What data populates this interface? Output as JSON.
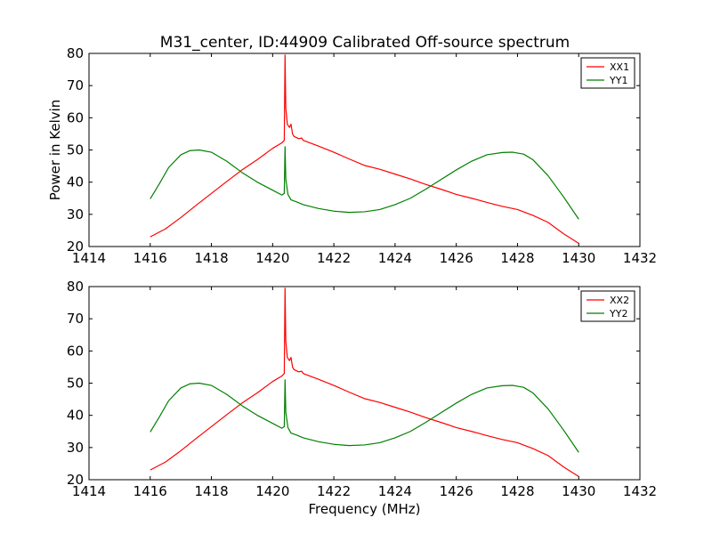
{
  "title": "M31_center, ID:44909 Calibrated Off-source spectrum",
  "chart_data": [
    {
      "type": "line",
      "ylabel": "Power in Kelvin",
      "xlabel": "",
      "xlim": [
        1414,
        1432
      ],
      "ylim": [
        20,
        80
      ],
      "xticks": [
        "1414",
        "1416",
        "1418",
        "1420",
        "1422",
        "1424",
        "1426",
        "1428",
        "1430",
        "1432"
      ],
      "yticks": [
        "20",
        "30",
        "40",
        "50",
        "60",
        "70",
        "80"
      ],
      "legend_placement": "top-right",
      "grid": false,
      "series": [
        {
          "name": "XX1",
          "color": "#ff0000",
          "x": [
            1416.0,
            1416.5,
            1417.0,
            1417.5,
            1418.0,
            1418.5,
            1419.0,
            1419.5,
            1420.0,
            1420.3,
            1420.38,
            1420.405,
            1420.43,
            1420.48,
            1420.55,
            1420.6,
            1420.65,
            1420.7,
            1420.85,
            1420.95,
            1421.0,
            1421.5,
            1422.0,
            1422.5,
            1423.0,
            1423.5,
            1424.0,
            1424.5,
            1425.0,
            1425.5,
            1426.0,
            1426.5,
            1426.7,
            1427.0,
            1427.5,
            1428.0,
            1428.5,
            1429.0,
            1429.5,
            1430.0
          ],
          "y": [
            23.0,
            25.5,
            29.0,
            32.8,
            36.5,
            40.2,
            43.8,
            47.0,
            50.5,
            52.2,
            53.0,
            79.5,
            63.0,
            58.0,
            57.0,
            58.0,
            55.0,
            54.2,
            53.5,
            53.7,
            53.0,
            51.2,
            49.3,
            47.2,
            45.2,
            44.0,
            42.5,
            41.0,
            39.3,
            37.8,
            36.2,
            35.0,
            34.5,
            33.7,
            32.5,
            31.5,
            29.7,
            27.5,
            24.0,
            21.0
          ]
        },
        {
          "name": "YY1",
          "color": "#008000",
          "x": [
            1416.0,
            1416.3,
            1416.6,
            1417.0,
            1417.3,
            1417.6,
            1418.0,
            1418.5,
            1419.0,
            1419.5,
            1420.0,
            1420.3,
            1420.38,
            1420.405,
            1420.43,
            1420.5,
            1420.6,
            1420.8,
            1421.0,
            1421.5,
            1422.0,
            1422.5,
            1423.0,
            1423.5,
            1424.0,
            1424.5,
            1425.0,
            1425.5,
            1426.0,
            1426.5,
            1427.0,
            1427.5,
            1427.85,
            1428.2,
            1428.5,
            1429.0,
            1429.5,
            1430.0
          ],
          "y": [
            34.8,
            39.5,
            44.5,
            48.5,
            49.8,
            50.0,
            49.3,
            46.5,
            43.0,
            40.0,
            37.5,
            36.0,
            36.5,
            51.0,
            41.0,
            36.2,
            34.5,
            33.8,
            33.0,
            31.8,
            31.0,
            30.6,
            30.8,
            31.5,
            33.0,
            35.0,
            37.8,
            40.8,
            43.8,
            46.5,
            48.5,
            49.2,
            49.3,
            48.7,
            47.0,
            42.0,
            35.5,
            28.5
          ]
        }
      ]
    },
    {
      "type": "line",
      "ylabel": "",
      "xlabel": "Frequency (MHz)",
      "xlim": [
        1414,
        1432
      ],
      "ylim": [
        20,
        80
      ],
      "xticks": [
        "1414",
        "1416",
        "1418",
        "1420",
        "1422",
        "1424",
        "1426",
        "1428",
        "1430",
        "1432"
      ],
      "yticks": [
        "20",
        "30",
        "40",
        "50",
        "60",
        "70",
        "80"
      ],
      "legend_placement": "top-right",
      "grid": false,
      "series": [
        {
          "name": "XX2",
          "color": "#ff0000",
          "x": [
            1416.0,
            1416.5,
            1417.0,
            1417.5,
            1418.0,
            1418.5,
            1419.0,
            1419.5,
            1420.0,
            1420.3,
            1420.38,
            1420.405,
            1420.43,
            1420.48,
            1420.55,
            1420.6,
            1420.65,
            1420.7,
            1420.85,
            1420.95,
            1421.0,
            1421.5,
            1422.0,
            1422.5,
            1423.0,
            1423.5,
            1424.0,
            1424.5,
            1425.0,
            1425.5,
            1426.0,
            1426.5,
            1426.7,
            1427.0,
            1427.5,
            1428.0,
            1428.5,
            1429.0,
            1429.5,
            1430.0
          ],
          "y": [
            23.0,
            25.5,
            29.0,
            32.8,
            36.5,
            40.2,
            43.8,
            47.0,
            50.5,
            52.2,
            53.0,
            79.5,
            63.0,
            58.0,
            57.0,
            58.0,
            55.0,
            54.2,
            53.5,
            53.7,
            53.0,
            51.2,
            49.3,
            47.2,
            45.2,
            44.0,
            42.5,
            41.0,
            39.3,
            37.8,
            36.2,
            35.0,
            34.5,
            33.7,
            32.5,
            31.5,
            29.7,
            27.5,
            24.0,
            21.0
          ]
        },
        {
          "name": "YY2",
          "color": "#008000",
          "x": [
            1416.0,
            1416.3,
            1416.6,
            1417.0,
            1417.3,
            1417.6,
            1418.0,
            1418.5,
            1419.0,
            1419.5,
            1420.0,
            1420.3,
            1420.38,
            1420.405,
            1420.43,
            1420.5,
            1420.6,
            1420.8,
            1421.0,
            1421.5,
            1422.0,
            1422.5,
            1423.0,
            1423.5,
            1424.0,
            1424.5,
            1425.0,
            1425.5,
            1426.0,
            1426.5,
            1427.0,
            1427.5,
            1427.85,
            1428.2,
            1428.5,
            1429.0,
            1429.5,
            1430.0
          ],
          "y": [
            34.8,
            39.5,
            44.5,
            48.5,
            49.8,
            50.0,
            49.3,
            46.5,
            43.0,
            40.0,
            37.5,
            36.0,
            36.5,
            51.0,
            41.0,
            36.2,
            34.5,
            33.8,
            33.0,
            31.8,
            31.0,
            30.6,
            30.8,
            31.5,
            33.0,
            35.0,
            37.8,
            40.8,
            43.8,
            46.5,
            48.5,
            49.2,
            49.3,
            48.7,
            47.0,
            42.0,
            35.5,
            28.5
          ]
        }
      ]
    }
  ]
}
